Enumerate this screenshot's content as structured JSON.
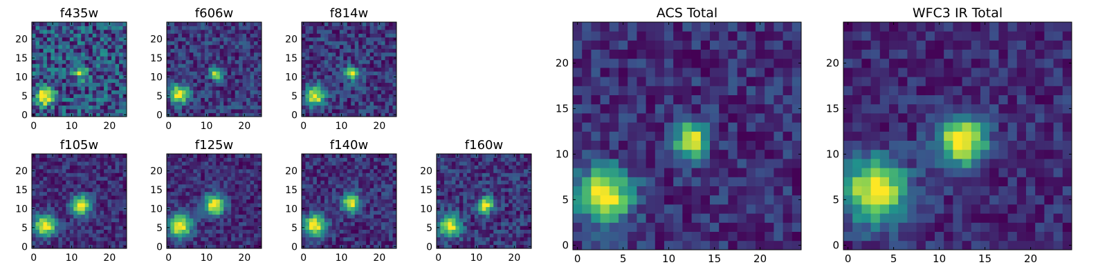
{
  "figure": {
    "colormap": "viridis",
    "colormap_stops": [
      "#440154",
      "#3b528b",
      "#21918c",
      "#5ec962",
      "#fde725"
    ]
  },
  "chart_data": [
    {
      "type": "heatmap",
      "title": "f435w",
      "image_size": [
        25,
        25
      ],
      "xlim": [
        0,
        24
      ],
      "ylim": [
        0,
        24
      ],
      "xticks": [
        "0",
        "10",
        "20"
      ],
      "xticks_minor": [
        "5",
        "15"
      ],
      "yticks": [
        "0",
        "5",
        "10",
        "15",
        "20"
      ],
      "sources": [
        {
          "x": 3,
          "y": 5,
          "peak": 1.0,
          "sigma": 1.6
        },
        {
          "x": 12.5,
          "y": 11,
          "peak": 0.55,
          "sigma": 1.2
        }
      ],
      "background_level": 0.62,
      "noise": 0.28
    },
    {
      "type": "heatmap",
      "title": "f606w",
      "image_size": [
        25,
        25
      ],
      "xlim": [
        0,
        24
      ],
      "ylim": [
        0,
        24
      ],
      "xticks": [
        "0",
        "10",
        "20"
      ],
      "xticks_minor": [
        "5",
        "15"
      ],
      "yticks": [
        "0",
        "5",
        "10",
        "15",
        "20"
      ],
      "sources": [
        {
          "x": 3,
          "y": 5.5,
          "peak": 1.0,
          "sigma": 1.7
        },
        {
          "x": 12.5,
          "y": 11,
          "peak": 0.95,
          "sigma": 1.1
        }
      ],
      "background_level": 0.3,
      "noise": 0.2
    },
    {
      "type": "heatmap",
      "title": "f814w",
      "image_size": [
        25,
        25
      ],
      "xlim": [
        0,
        24
      ],
      "ylim": [
        0,
        24
      ],
      "xticks": [
        "0",
        "10",
        "20"
      ],
      "xticks_minor": [
        "5",
        "15"
      ],
      "yticks": [
        "0",
        "5",
        "10",
        "15",
        "20"
      ],
      "sources": [
        {
          "x": 3,
          "y": 5,
          "peak": 1.0,
          "sigma": 1.7
        },
        {
          "x": 12.5,
          "y": 11,
          "peak": 0.95,
          "sigma": 1.1
        }
      ],
      "background_level": 0.28,
      "noise": 0.2
    },
    {
      "type": "heatmap",
      "title": "f105w",
      "image_size": [
        25,
        25
      ],
      "xlim": [
        0,
        24
      ],
      "ylim": [
        0,
        24
      ],
      "xticks": [
        "0",
        "10",
        "20"
      ],
      "xticks_minor": [
        "5",
        "15"
      ],
      "yticks": [
        "0",
        "5",
        "10",
        "15",
        "20"
      ],
      "sources": [
        {
          "x": 3,
          "y": 5.5,
          "peak": 0.95,
          "sigma": 2.0
        },
        {
          "x": 12.5,
          "y": 11,
          "peak": 1.0,
          "sigma": 1.7
        }
      ],
      "background_level": 0.3,
      "noise": 0.14
    },
    {
      "type": "heatmap",
      "title": "f125w",
      "image_size": [
        25,
        25
      ],
      "xlim": [
        0,
        24
      ],
      "ylim": [
        0,
        24
      ],
      "xticks": [
        "0",
        "10",
        "20"
      ],
      "xticks_minor": [
        "5",
        "15"
      ],
      "yticks": [
        "0",
        "5",
        "10",
        "15",
        "20"
      ],
      "sources": [
        {
          "x": 3,
          "y": 5.5,
          "peak": 0.95,
          "sigma": 2.2
        },
        {
          "x": 12,
          "y": 11,
          "peak": 1.0,
          "sigma": 1.9
        }
      ],
      "background_level": 0.35,
      "noise": 0.14
    },
    {
      "type": "heatmap",
      "title": "f140w",
      "image_size": [
        25,
        25
      ],
      "xlim": [
        0,
        24
      ],
      "ylim": [
        0,
        24
      ],
      "xticks": [
        "0",
        "10",
        "20"
      ],
      "xticks_minor": [
        "5",
        "15"
      ],
      "yticks": [
        "0",
        "5",
        "10",
        "15",
        "20"
      ],
      "sources": [
        {
          "x": 3,
          "y": 5.5,
          "peak": 1.0,
          "sigma": 2.0
        },
        {
          "x": 12.5,
          "y": 11.5,
          "peak": 1.0,
          "sigma": 1.6
        }
      ],
      "background_level": 0.33,
      "noise": 0.16
    },
    {
      "type": "heatmap",
      "title": "f160w",
      "image_size": [
        25,
        25
      ],
      "xlim": [
        0,
        24
      ],
      "ylim": [
        0,
        24
      ],
      "xticks": [
        "0",
        "10",
        "20"
      ],
      "xticks_minor": [
        "5",
        "15"
      ],
      "yticks": [
        "0",
        "5",
        "10",
        "15",
        "20"
      ],
      "sources": [
        {
          "x": 3,
          "y": 5.5,
          "peak": 0.95,
          "sigma": 2.0
        },
        {
          "x": 12.5,
          "y": 11,
          "peak": 1.0,
          "sigma": 1.4
        }
      ],
      "background_level": 0.28,
      "noise": 0.18
    },
    {
      "type": "heatmap",
      "title": "ACS Total",
      "image_size": [
        25,
        25
      ],
      "xlim": [
        0,
        24
      ],
      "ylim": [
        0,
        24
      ],
      "xticks": [
        "0",
        "5",
        "10",
        "15",
        "20"
      ],
      "xticks_minor": [],
      "yticks": [
        "0",
        "5",
        "10",
        "15",
        "20"
      ],
      "sources": [
        {
          "x": 3,
          "y": 5.5,
          "peak": 1.0,
          "sigma": 2.0
        },
        {
          "x": 12.5,
          "y": 11.5,
          "peak": 1.0,
          "sigma": 1.2
        }
      ],
      "background_level": 0.35,
      "noise": 0.15
    },
    {
      "type": "heatmap",
      "title": "WFC3 IR Total",
      "image_size": [
        25,
        25
      ],
      "xlim": [
        0,
        24
      ],
      "ylim": [
        0,
        24
      ],
      "xticks": [
        "0",
        "5",
        "10",
        "15",
        "20"
      ],
      "xticks_minor": [],
      "yticks": [
        "0",
        "5",
        "10",
        "15",
        "20"
      ],
      "sources": [
        {
          "x": 3,
          "y": 6,
          "peak": 0.92,
          "sigma": 2.4
        },
        {
          "x": 12.5,
          "y": 11.5,
          "peak": 1.0,
          "sigma": 1.8
        }
      ],
      "background_level": 0.28,
      "noise": 0.13
    }
  ]
}
